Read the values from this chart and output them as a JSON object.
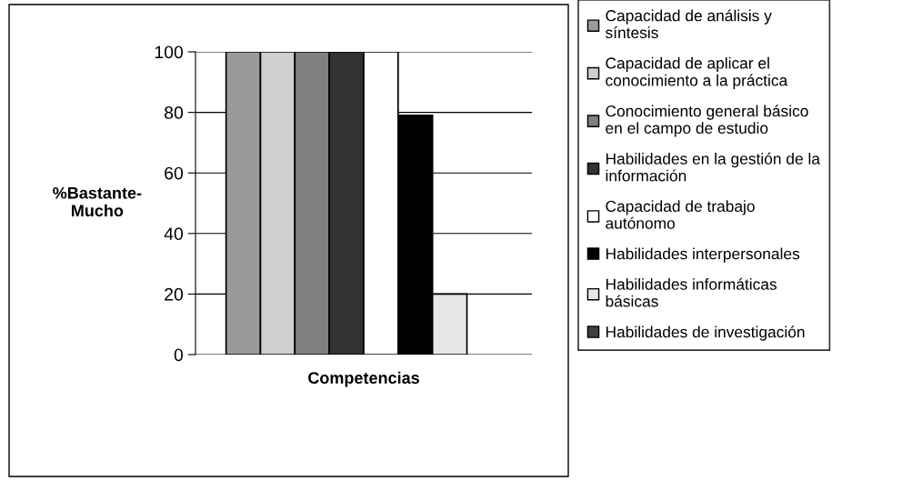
{
  "chart_data": {
    "type": "bar",
    "xlabel": "Competencias",
    "ylabel": "%Bastante-\nMucho",
    "categories": [
      null
    ],
    "series": [
      {
        "name": "Capacidad de análisis y\nsíntesis",
        "color": "#9a9a9a",
        "values": [
          100
        ]
      },
      {
        "name": "Capacidad de aplicar el\nconocimiento a la práctica",
        "color": "#d0d0d0",
        "values": [
          100
        ]
      },
      {
        "name": "Conocimiento general básico\nen el campo de estudio",
        "color": "#808080",
        "values": [
          100
        ]
      },
      {
        "name": "Habilidades en la gestión de la\ninformación",
        "color": "#333333",
        "values": [
          100
        ]
      },
      {
        "name": "Capacidad de trabajo\nautónomo",
        "color": "#ffffff",
        "values": [
          100
        ]
      },
      {
        "name": "Habilidades interpersonales",
        "color": "#000000",
        "values": [
          79
        ]
      },
      {
        "name": "Habilidades informáticas\nbásicas",
        "color": "#e6e6e6",
        "values": [
          20
        ]
      },
      {
        "name": "Habilidades de investigación",
        "color": "#404040",
        "values": [
          0
        ]
      }
    ],
    "ylim": [
      0,
      100
    ],
    "yticks": [
      0,
      20,
      40,
      60,
      80,
      100
    ],
    "grid": "y",
    "legend": "right"
  }
}
